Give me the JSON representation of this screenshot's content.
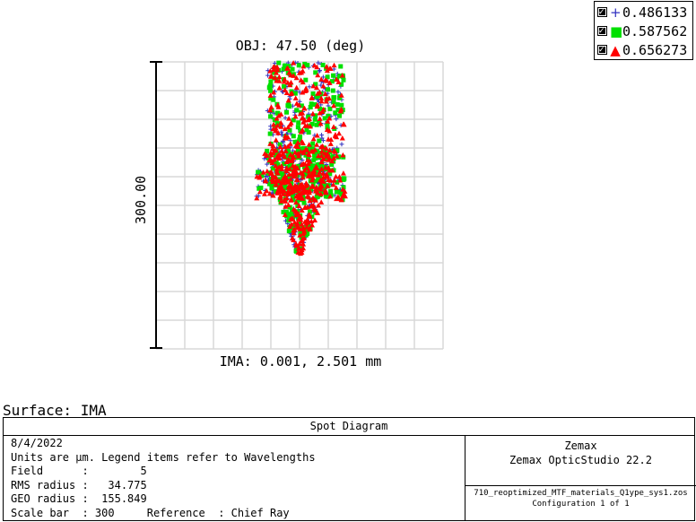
{
  "chart_data": {
    "type": "scatter",
    "title": "OBJ: 47.50 (deg)",
    "xlabel": "IMA: 0.001, 2.501 mm",
    "scale_bar_label": "300.00",
    "grid": true,
    "legend_position": "top-right",
    "units": "µm",
    "xlim": [
      -150,
      150
    ],
    "ylim": [
      -150,
      150
    ],
    "series": [
      {
        "name": "0.486133",
        "marker": "plus",
        "color": "#3030c0"
      },
      {
        "name": "0.587562",
        "marker": "square",
        "color": "#00e000"
      },
      {
        "name": "0.656273",
        "marker": "triangle",
        "color": "#ff0000"
      }
    ]
  },
  "surface_label": "Surface: IMA",
  "panel": {
    "title": "Spot Diagram",
    "date": "8/4/2022",
    "units_line": "Units are µm. Legend items refer to Wavelengths",
    "field_line": "Field      :        5",
    "rms_line": "RMS radius :   34.775",
    "geo_line": "GEO radius :  155.849",
    "scale_line": "Scale bar  : 300     Reference  : Chief Ray",
    "vendor": "Zemax",
    "product": "Zemax OpticStudio 22.2",
    "file": "710_reoptimized_MTF_materials_Q1ype_sys1.zos",
    "config": "Configuration 1 of 1"
  }
}
